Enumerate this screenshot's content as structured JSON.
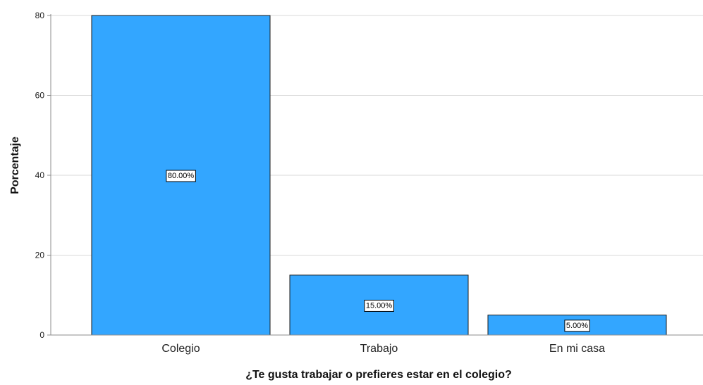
{
  "chart_data": {
    "type": "bar",
    "categories": [
      "Colegio",
      "Trabajo",
      "En mi casa"
    ],
    "values": [
      80,
      15,
      5
    ],
    "data_labels": [
      "80.00%",
      "15.00%",
      "5.00%"
    ],
    "title": "",
    "xlabel": "¿Te gusta trabajar o prefieres estar en el colegio?",
    "ylabel": "Porcentaje",
    "ylim": [
      0,
      80
    ],
    "yticks": [
      0,
      20,
      40,
      60,
      80
    ],
    "ytick_labels": [
      "0",
      "20",
      "40",
      "60",
      "80"
    ],
    "grid": "horizontal",
    "legend": "none",
    "colors": {
      "bar_fill": "#33a6ff",
      "bar_stroke": "#1a1a1a",
      "grid": "#d9d9d9",
      "axis": "#8c8c8c"
    }
  }
}
